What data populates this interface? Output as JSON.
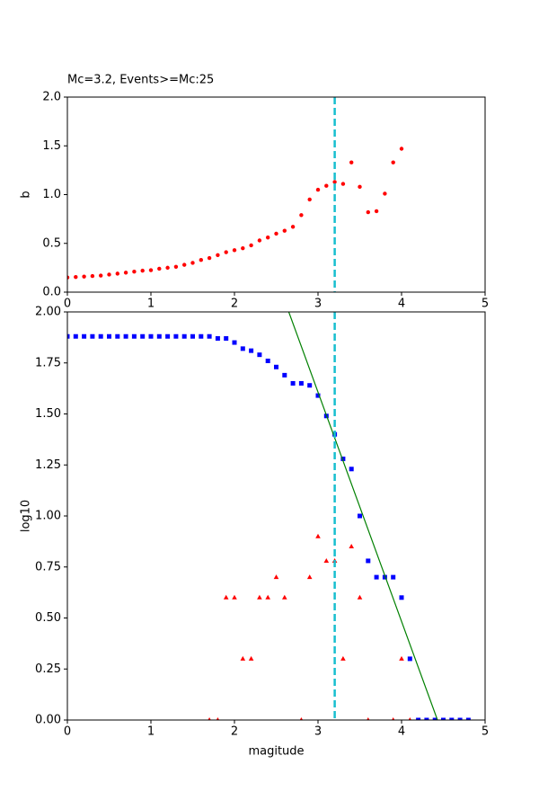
{
  "chart_data": [
    {
      "type": "scatter",
      "title": "Mc=3.2, Events>=Mc:25",
      "y_label": "b",
      "xlim": [
        0,
        5
      ],
      "ylim": [
        0,
        2
      ],
      "xticks": [
        0,
        1,
        2,
        3,
        4,
        5
      ],
      "yticks": [
        {
          "value": 0,
          "label": "0.0"
        },
        0.5,
        {
          "value": 1,
          "label": "1.0"
        },
        1.5,
        {
          "value": 2,
          "label": "2.0"
        }
      ],
      "vline": 3.2,
      "vline_color": "#17becf",
      "series": [
        {
          "marker": "circle",
          "color": "#ff0000",
          "x": [
            0.0,
            0.1,
            0.2,
            0.3,
            0.4,
            0.5,
            0.6,
            0.7,
            0.8,
            0.9,
            1.0,
            1.1,
            1.2,
            1.3,
            1.4,
            1.5,
            1.6,
            1.7,
            1.8,
            1.9,
            2.0,
            2.1,
            2.2,
            2.3,
            2.4,
            2.5,
            2.6,
            2.7,
            2.8,
            2.9,
            3.0,
            3.1,
            3.2,
            3.3,
            3.4,
            3.5,
            3.6,
            3.7,
            3.8,
            3.9,
            4.0
          ],
          "values": [
            0.15,
            0.155,
            0.16,
            0.165,
            0.17,
            0.18,
            0.19,
            0.2,
            0.21,
            0.22,
            0.225,
            0.24,
            0.25,
            0.26,
            0.28,
            0.3,
            0.33,
            0.35,
            0.38,
            0.41,
            0.43,
            0.45,
            0.48,
            0.53,
            0.56,
            0.6,
            0.63,
            0.67,
            0.79,
            0.95,
            1.05,
            1.09,
            1.13,
            1.11,
            1.33,
            1.08,
            0.82,
            0.83,
            1.01,
            1.33,
            1.47
          ]
        }
      ]
    },
    {
      "type": "scatter",
      "x_label": "magitude",
      "y_label": "log10",
      "xlim": [
        0,
        5
      ],
      "ylim": [
        0,
        2
      ],
      "xticks": [
        0,
        1,
        2,
        3,
        4,
        5
      ],
      "yticks": [
        {
          "value": 0,
          "label": "0.00"
        },
        {
          "value": 0.25,
          "label": "0.25"
        },
        {
          "value": 0.5,
          "label": "0.50"
        },
        {
          "value": 0.75,
          "label": "0.75"
        },
        {
          "value": 1,
          "label": "1.00"
        },
        {
          "value": 1.25,
          "label": "1.25"
        },
        {
          "value": 1.5,
          "label": "1.50"
        },
        {
          "value": 1.75,
          "label": "1.75"
        },
        {
          "value": 2,
          "label": "2.00"
        }
      ],
      "vline": 3.2,
      "vline_color": "#17becf",
      "series": [
        {
          "marker": "square",
          "color": "#0000ff",
          "x": [
            0.0,
            0.1,
            0.2,
            0.3,
            0.4,
            0.5,
            0.6,
            0.7,
            0.8,
            0.9,
            1.0,
            1.1,
            1.2,
            1.3,
            1.4,
            1.5,
            1.6,
            1.7,
            1.8,
            1.9,
            2.0,
            2.1,
            2.2,
            2.3,
            2.4,
            2.5,
            2.6,
            2.7,
            2.8,
            2.9,
            3.0,
            3.1,
            3.2,
            3.3,
            3.4,
            3.5,
            3.6,
            3.7,
            3.8,
            3.9,
            4.0,
            4.1,
            4.2,
            4.3,
            4.4,
            4.5,
            4.6,
            4.7,
            4.8
          ],
          "values": [
            1.88,
            1.88,
            1.88,
            1.88,
            1.88,
            1.88,
            1.88,
            1.88,
            1.88,
            1.88,
            1.88,
            1.88,
            1.88,
            1.88,
            1.88,
            1.88,
            1.88,
            1.88,
            1.87,
            1.87,
            1.85,
            1.82,
            1.81,
            1.79,
            1.76,
            1.73,
            1.69,
            1.65,
            1.65,
            1.64,
            1.59,
            1.49,
            1.4,
            1.28,
            1.23,
            1.0,
            0.78,
            0.7,
            0.7,
            0.7,
            0.6,
            0.3,
            0,
            0,
            0,
            0,
            0,
            0,
            0
          ]
        },
        {
          "marker": "triangle",
          "color": "#ff0000",
          "x": [
            1.7,
            1.8,
            1.9,
            2.0,
            2.1,
            2.2,
            2.3,
            2.4,
            2.5,
            2.6,
            2.8,
            2.9,
            3.0,
            3.1,
            3.2,
            3.3,
            3.4,
            3.5,
            3.6,
            3.9,
            4.0,
            4.1
          ],
          "values": [
            0,
            0,
            0.6,
            0.6,
            0.3,
            0.3,
            0.6,
            0.6,
            0.7,
            0.6,
            0,
            0.7,
            0.9,
            0.78,
            0.78,
            0.3,
            0.85,
            0.6,
            0,
            0,
            0.3,
            0
          ]
        },
        {
          "marker": "line",
          "color": "#008000",
          "x": [
            2.65,
            4.43
          ],
          "values": [
            2.0,
            0.0
          ]
        }
      ]
    }
  ]
}
